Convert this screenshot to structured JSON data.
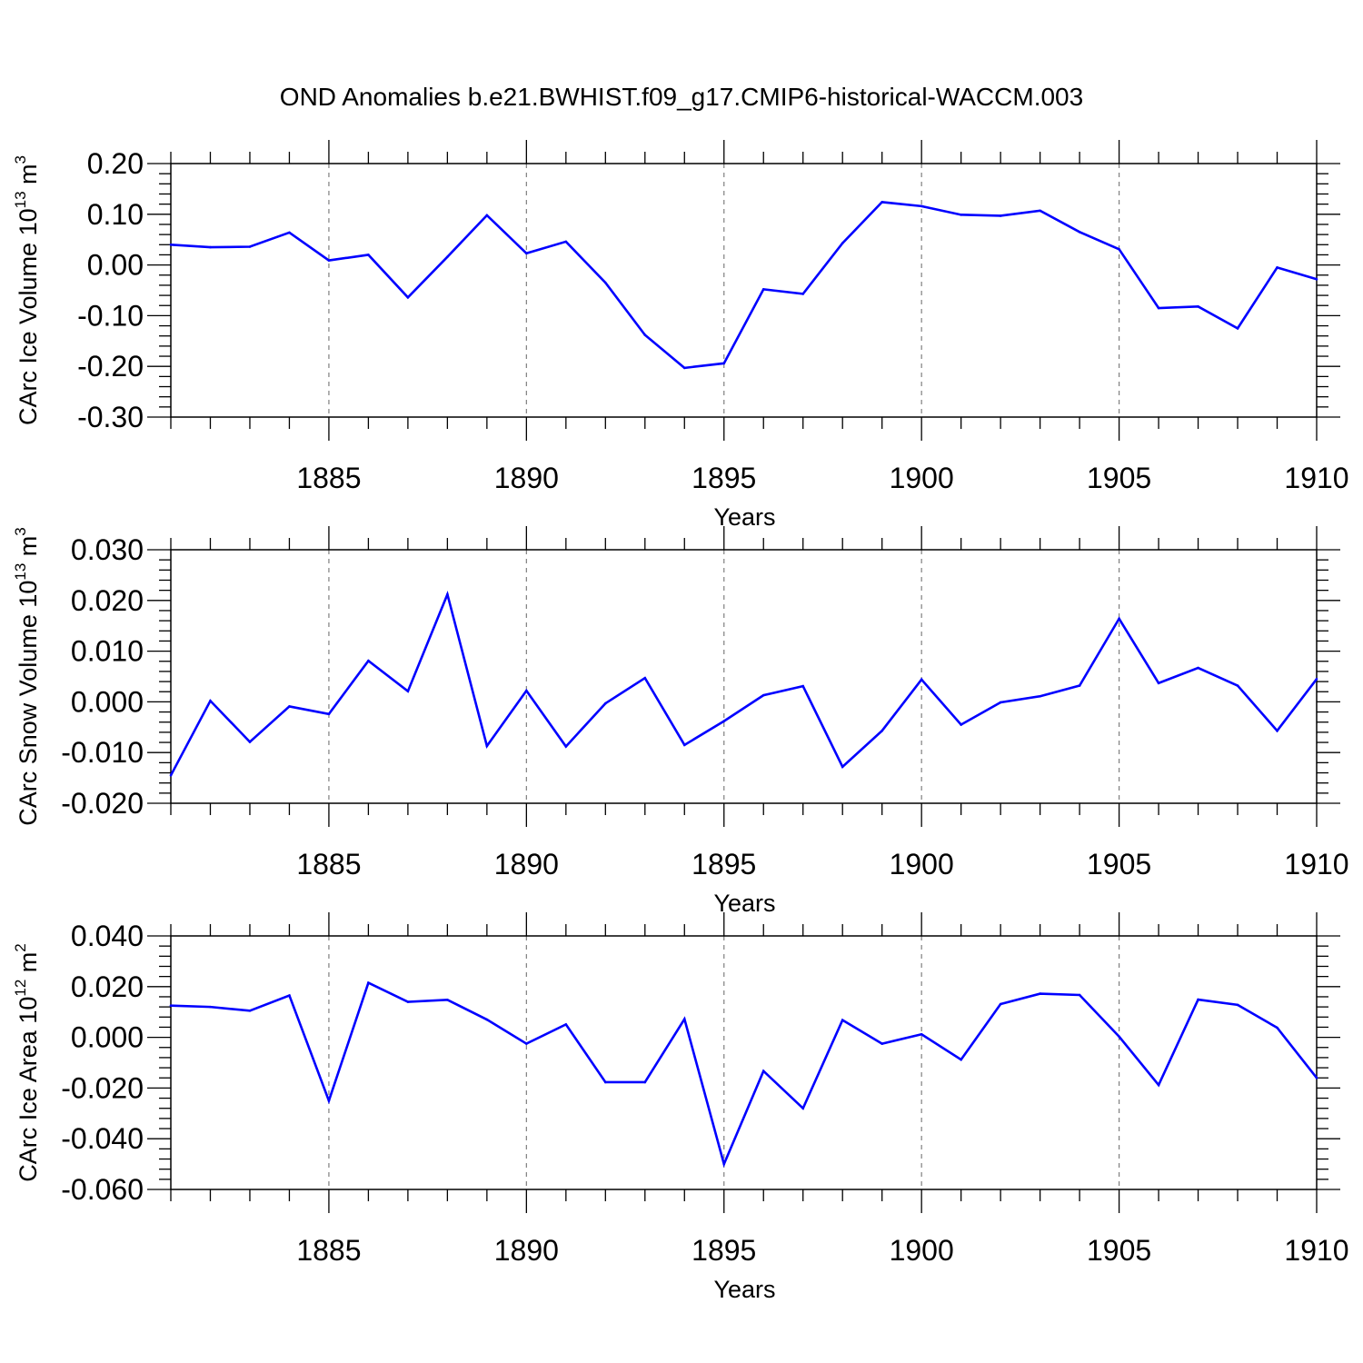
{
  "figure": {
    "title": "OND Anomalies b.e21.BWHIST.f09_g17.CMIP6-historical-WACCM.003"
  },
  "chart_data": [
    {
      "type": "line",
      "xlabel": "Years",
      "ylabel": {
        "text": "CArc Ice Volume 10",
        "exponent": "13",
        "unit": " m",
        "unit_exponent": "3"
      },
      "xlim": [
        1881,
        1910
      ],
      "ylim": [
        -0.3,
        0.2
      ],
      "x_ticks": [
        "1885",
        "1890",
        "1895",
        "1900",
        "1905",
        "1910"
      ],
      "y_ticks": [
        "0.20",
        "0.10",
        "0.00",
        "-0.10",
        "-0.20",
        "-0.30"
      ],
      "grid": "vertical dashed at major x ticks",
      "line_color": "#0000ff",
      "x": [
        1881,
        1882,
        1883,
        1884,
        1885,
        1886,
        1887,
        1888,
        1889,
        1890,
        1891,
        1892,
        1893,
        1894,
        1895,
        1896,
        1897,
        1898,
        1899,
        1900,
        1901,
        1902,
        1903,
        1904,
        1905,
        1906,
        1907,
        1908,
        1909,
        1910
      ],
      "values": [
        0.04,
        0.035,
        0.036,
        0.064,
        0.009,
        0.02,
        -0.064,
        0.016,
        0.098,
        0.023,
        0.046,
        -0.035,
        -0.138,
        -0.203,
        -0.194,
        -0.048,
        -0.057,
        0.043,
        0.124,
        0.116,
        0.099,
        0.097,
        0.107,
        0.065,
        0.031,
        -0.085,
        -0.082,
        -0.125,
        -0.005,
        -0.028
      ]
    },
    {
      "type": "line",
      "xlabel": "Years",
      "ylabel": {
        "text": "CArc Snow Volume 10",
        "exponent": "13",
        "unit": " m",
        "unit_exponent": "3"
      },
      "xlim": [
        1881,
        1910
      ],
      "ylim": [
        -0.02,
        0.03
      ],
      "x_ticks": [
        "1885",
        "1890",
        "1895",
        "1900",
        "1905",
        "1910"
      ],
      "y_ticks": [
        "0.030",
        "0.020",
        "0.010",
        "0.000",
        "-0.010",
        "-0.020"
      ],
      "grid": "vertical dashed at major x ticks",
      "line_color": "#0000ff",
      "x": [
        1881,
        1882,
        1883,
        1884,
        1885,
        1886,
        1887,
        1888,
        1889,
        1890,
        1891,
        1892,
        1893,
        1894,
        1895,
        1896,
        1897,
        1898,
        1899,
        1900,
        1901,
        1902,
        1903,
        1904,
        1905,
        1906,
        1907,
        1908,
        1909,
        1910
      ],
      "values": [
        -0.0145,
        0.0002,
        -0.0079,
        -0.0009,
        -0.0024,
        0.0081,
        0.0021,
        0.0212,
        -0.0087,
        0.0022,
        -0.0088,
        -0.0003,
        0.0047,
        -0.0085,
        -0.0038,
        0.0013,
        0.0031,
        -0.0128,
        -0.0057,
        0.0044,
        -0.0045,
        -0.0001,
        0.0011,
        0.0032,
        0.0164,
        0.0037,
        0.0067,
        0.0032,
        -0.0057,
        0.0045
      ]
    },
    {
      "type": "line",
      "xlabel": "Years",
      "ylabel": {
        "text": "CArc Ice Area 10",
        "exponent": "12",
        "unit": " m",
        "unit_exponent": "2"
      },
      "xlim": [
        1881,
        1910
      ],
      "ylim": [
        -0.06,
        0.04
      ],
      "x_ticks": [
        "1885",
        "1890",
        "1895",
        "1900",
        "1905",
        "1910"
      ],
      "y_ticks": [
        "0.040",
        "0.020",
        "0.000",
        "-0.020",
        "-0.040",
        "-0.060"
      ],
      "grid": "vertical dashed at major x ticks",
      "line_color": "#0000ff",
      "x": [
        1881,
        1882,
        1883,
        1884,
        1885,
        1886,
        1887,
        1888,
        1889,
        1890,
        1891,
        1892,
        1893,
        1894,
        1895,
        1896,
        1897,
        1898,
        1899,
        1900,
        1901,
        1902,
        1903,
        1904,
        1905,
        1906,
        1907,
        1908,
        1909,
        1910
      ],
      "values": [
        0.0125,
        0.012,
        0.0105,
        0.0165,
        -0.025,
        0.0215,
        0.014,
        0.0148,
        0.007,
        -0.0025,
        0.0051,
        -0.0177,
        -0.0177,
        0.0072,
        -0.05,
        -0.0133,
        -0.028,
        0.0068,
        -0.0025,
        0.0012,
        -0.0088,
        0.0131,
        0.0172,
        0.0167,
        0.0003,
        -0.0188,
        0.0149,
        0.0128,
        0.0038,
        -0.016
      ]
    }
  ]
}
